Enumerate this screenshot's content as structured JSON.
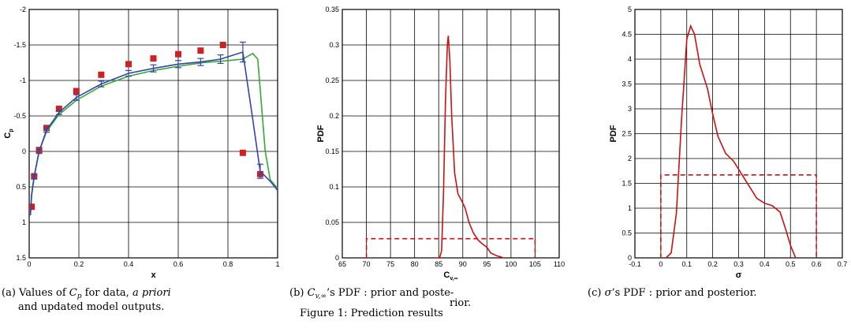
{
  "chart_data": [
    {
      "type": "line",
      "xlabel": "x",
      "ylabel": "C",
      "ylabel_sub": "p",
      "xlim": [
        0,
        1
      ],
      "ylim": [
        1.5,
        -2
      ],
      "y_inverted": true,
      "xticks": [
        "0",
        "0.2",
        "0.4",
        "0.6",
        "0.8",
        "1"
      ],
      "yticks": [
        "-2",
        "-1.5",
        "-1",
        "-0.5",
        "0",
        "0.5",
        "1",
        "1.5"
      ],
      "grid": true,
      "series": [
        {
          "kind": "markers",
          "color": "#cc2222",
          "points": [
            [
              0.01,
              0.78
            ],
            [
              0.02,
              0.35
            ],
            [
              0.04,
              -0.02
            ],
            [
              0.07,
              -0.33
            ],
            [
              0.12,
              -0.6
            ],
            [
              0.19,
              -0.85
            ],
            [
              0.29,
              -1.08
            ],
            [
              0.4,
              -1.23
            ],
            [
              0.5,
              -1.31
            ],
            [
              0.6,
              -1.37
            ],
            [
              0.69,
              -1.42
            ],
            [
              0.78,
              -1.5
            ],
            [
              0.86,
              0.02
            ],
            [
              0.93,
              0.32
            ]
          ]
        },
        {
          "kind": "line",
          "color": "#33aa33",
          "points": [
            [
              0.005,
              0.85
            ],
            [
              0.01,
              0.6
            ],
            [
              0.02,
              0.35
            ],
            [
              0.04,
              0.0
            ],
            [
              0.07,
              -0.28
            ],
            [
              0.12,
              -0.52
            ],
            [
              0.19,
              -0.72
            ],
            [
              0.29,
              -0.92
            ],
            [
              0.4,
              -1.06
            ],
            [
              0.5,
              -1.14
            ],
            [
              0.6,
              -1.2
            ],
            [
              0.7,
              -1.25
            ],
            [
              0.8,
              -1.28
            ],
            [
              0.86,
              -1.3
            ],
            [
              0.9,
              -1.38
            ],
            [
              0.92,
              -1.3
            ],
            [
              0.95,
              0.0
            ],
            [
              0.97,
              0.4
            ],
            [
              1.0,
              0.52
            ]
          ]
        },
        {
          "kind": "line-errorbars",
          "color": "#3344aa",
          "points": [
            [
              0.005,
              0.9
            ],
            [
              0.01,
              0.62
            ],
            [
              0.02,
              0.36
            ],
            [
              0.04,
              0.0
            ],
            [
              0.07,
              -0.3
            ],
            [
              0.12,
              -0.55
            ],
            [
              0.19,
              -0.76
            ],
            [
              0.29,
              -0.95
            ],
            [
              0.4,
              -1.1
            ],
            [
              0.5,
              -1.17
            ],
            [
              0.6,
              -1.23
            ],
            [
              0.69,
              -1.26
            ],
            [
              0.77,
              -1.3
            ],
            [
              0.86,
              -1.4
            ],
            [
              0.9,
              -0.45
            ],
            [
              0.93,
              0.28
            ],
            [
              0.97,
              0.42
            ],
            [
              1.0,
              0.55
            ]
          ],
          "errorbars": [
            [
              0.02,
              0.36,
              0.03
            ],
            [
              0.04,
              0.0,
              0.03
            ],
            [
              0.07,
              -0.3,
              0.03
            ],
            [
              0.12,
              -0.55,
              0.03
            ],
            [
              0.19,
              -0.76,
              0.04
            ],
            [
              0.29,
              -0.95,
              0.04
            ],
            [
              0.4,
              -1.1,
              0.04
            ],
            [
              0.5,
              -1.17,
              0.05
            ],
            [
              0.6,
              -1.23,
              0.05
            ],
            [
              0.69,
              -1.26,
              0.05
            ],
            [
              0.77,
              -1.3,
              0.06
            ],
            [
              0.86,
              -1.4,
              0.14
            ],
            [
              0.93,
              0.28,
              0.1
            ]
          ]
        }
      ],
      "caption": "(a) Values of C_p for data, a priori and updated model outputs."
    },
    {
      "type": "line",
      "xlabel": "C",
      "xlabel_sub": "v,∞",
      "ylabel": "PDF",
      "xlim": [
        65,
        110
      ],
      "ylim": [
        0,
        0.35
      ],
      "xticks": [
        "65",
        "70",
        "75",
        "80",
        "85",
        "90",
        "95",
        "100",
        "105",
        "110"
      ],
      "yticks": [
        "0",
        "0.05",
        "0.1",
        "0.15",
        "0.2",
        "0.25",
        "0.3",
        "0.35"
      ],
      "grid": true,
      "series": [
        {
          "kind": "line",
          "color": "#cc1111",
          "points": [
            [
              84.5,
              0.0
            ],
            [
              85.2,
              0.0
            ],
            [
              85.6,
              0.01
            ],
            [
              86.0,
              0.09
            ],
            [
              86.4,
              0.22
            ],
            [
              86.8,
              0.3
            ],
            [
              87.0,
              0.313
            ],
            [
              87.3,
              0.28
            ],
            [
              87.7,
              0.2
            ],
            [
              88.3,
              0.12
            ],
            [
              89.0,
              0.09
            ],
            [
              89.8,
              0.08
            ],
            [
              90.5,
              0.07
            ],
            [
              91.3,
              0.05
            ],
            [
              92.2,
              0.035
            ],
            [
              93.2,
              0.025
            ],
            [
              94.0,
              0.02
            ],
            [
              95.0,
              0.015
            ],
            [
              95.8,
              0.007
            ],
            [
              97.0,
              0.003
            ],
            [
              98.5,
              0.0
            ]
          ]
        },
        {
          "kind": "dashed",
          "color": "#cc1111",
          "points": [
            [
              70,
              0.0
            ],
            [
              70,
              0.027
            ],
            [
              105,
              0.027
            ],
            [
              105,
              0.0
            ]
          ]
        }
      ],
      "caption": "(b) C_v,∞'s PDF : prior and posterior."
    },
    {
      "type": "line",
      "xlabel": "σ",
      "ylabel": "PDF",
      "xlim": [
        -0.1,
        0.7
      ],
      "ylim": [
        0,
        5
      ],
      "xticks": [
        "-0.1",
        "0",
        "0.1",
        "0.2",
        "0.3",
        "0.4",
        "0.5",
        "0.6",
        "0.7"
      ],
      "yticks": [
        "0",
        "0.5",
        "1",
        "1.5",
        "2",
        "2.5",
        "3",
        "3.5",
        "4",
        "4.5",
        "5"
      ],
      "grid": true,
      "series": [
        {
          "kind": "line",
          "color": "#cc1111",
          "points": [
            [
              0.02,
              0.0
            ],
            [
              0.04,
              0.1
            ],
            [
              0.06,
              0.9
            ],
            [
              0.08,
              2.8
            ],
            [
              0.1,
              4.4
            ],
            [
              0.115,
              4.67
            ],
            [
              0.13,
              4.5
            ],
            [
              0.15,
              3.9
            ],
            [
              0.18,
              3.4
            ],
            [
              0.2,
              2.9
            ],
            [
              0.22,
              2.45
            ],
            [
              0.25,
              2.1
            ],
            [
              0.28,
              1.95
            ],
            [
              0.31,
              1.7
            ],
            [
              0.34,
              1.45
            ],
            [
              0.37,
              1.2
            ],
            [
              0.4,
              1.1
            ],
            [
              0.43,
              1.05
            ],
            [
              0.46,
              0.92
            ],
            [
              0.48,
              0.6
            ],
            [
              0.5,
              0.25
            ],
            [
              0.52,
              0.0
            ]
          ]
        },
        {
          "kind": "dashed",
          "color": "#cc1111",
          "points": [
            [
              0.0,
              0.0
            ],
            [
              0.0,
              1.67
            ],
            [
              0.6,
              1.67
            ],
            [
              0.6,
              0.0
            ]
          ]
        }
      ],
      "caption": "(c) σ's PDF : prior and posterior."
    }
  ],
  "footer": "Figure 1: Prediction results"
}
